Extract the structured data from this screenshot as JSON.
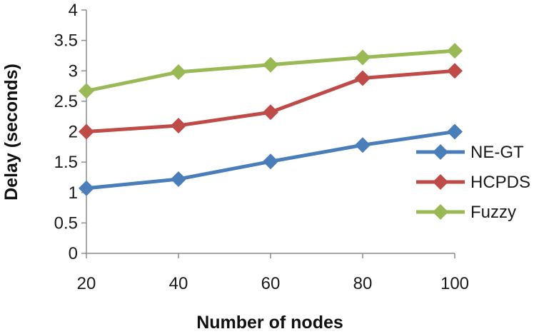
{
  "chart_data": {
    "type": "line",
    "x": [
      20,
      40,
      60,
      80,
      100
    ],
    "xlabel": "Number of nodes",
    "ylabel": "Delay (seconds)",
    "ylim": [
      0,
      4
    ],
    "yticks": [
      0,
      0.5,
      1,
      1.5,
      2,
      2.5,
      3,
      3.5,
      4
    ],
    "xticks": [
      20,
      40,
      60,
      80,
      100
    ],
    "grid": false,
    "legend_position": "right",
    "marker": "diamond",
    "series": [
      {
        "name": "NE-GT",
        "color": "#4a7ebb",
        "values": [
          1.07,
          1.22,
          1.51,
          1.78,
          2.0
        ]
      },
      {
        "name": "HCPDS",
        "color": "#be4b48",
        "values": [
          2.0,
          2.1,
          2.32,
          2.88,
          3.0
        ]
      },
      {
        "name": "Fuzzy",
        "color": "#98b954",
        "values": [
          2.67,
          2.98,
          3.1,
          3.22,
          3.33
        ]
      }
    ]
  }
}
